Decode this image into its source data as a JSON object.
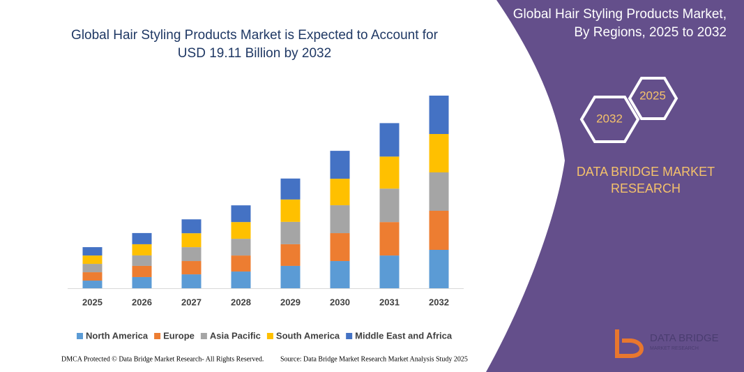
{
  "chart_data": {
    "type": "stacked_bar",
    "title": "Global Hair Styling Products Market is Expected to Account for USD 19.11 Billion by 2032",
    "categories": [
      "2025",
      "2026",
      "2027",
      "2028",
      "2029",
      "2030",
      "2031",
      "2032"
    ],
    "series": [
      {
        "name": "North America",
        "color": "#5b9bd5",
        "values": [
          0.76,
          1.11,
          1.38,
          1.66,
          2.22,
          2.7,
          3.25,
          3.81
        ]
      },
      {
        "name": "Europe",
        "color": "#ed7d31",
        "values": [
          0.83,
          1.11,
          1.32,
          1.59,
          2.15,
          2.77,
          3.32,
          3.88
        ]
      },
      {
        "name": "Asia Pacific",
        "color": "#a5a5a5",
        "values": [
          0.83,
          1.04,
          1.38,
          1.66,
          2.22,
          2.77,
          3.32,
          3.81
        ]
      },
      {
        "name": "South America",
        "color": "#ffc000",
        "values": [
          0.83,
          1.11,
          1.38,
          1.66,
          2.22,
          2.63,
          3.18,
          3.81
        ]
      },
      {
        "name": "Middle East and Africa",
        "color": "#4472c4",
        "values": [
          0.83,
          1.11,
          1.38,
          1.66,
          2.08,
          2.77,
          3.32,
          3.81
        ]
      }
    ]
  },
  "panel": {
    "title": "Global Hair Styling Products Market, By Regions, 2025 to 2032",
    "hex_back": "2025",
    "hex_front": "2032",
    "brand": "DATA BRIDGE MARKET RESEARCH",
    "logo_name": "DATA BRIDGE",
    "logo_sub": "MARKET RESEARCH"
  },
  "footer": {
    "left": "DMCA Protected © Data Bridge Market Research- All Rights Reserved.",
    "right": "Source: Data Bridge Market Research Market Analysis Study 2025"
  }
}
